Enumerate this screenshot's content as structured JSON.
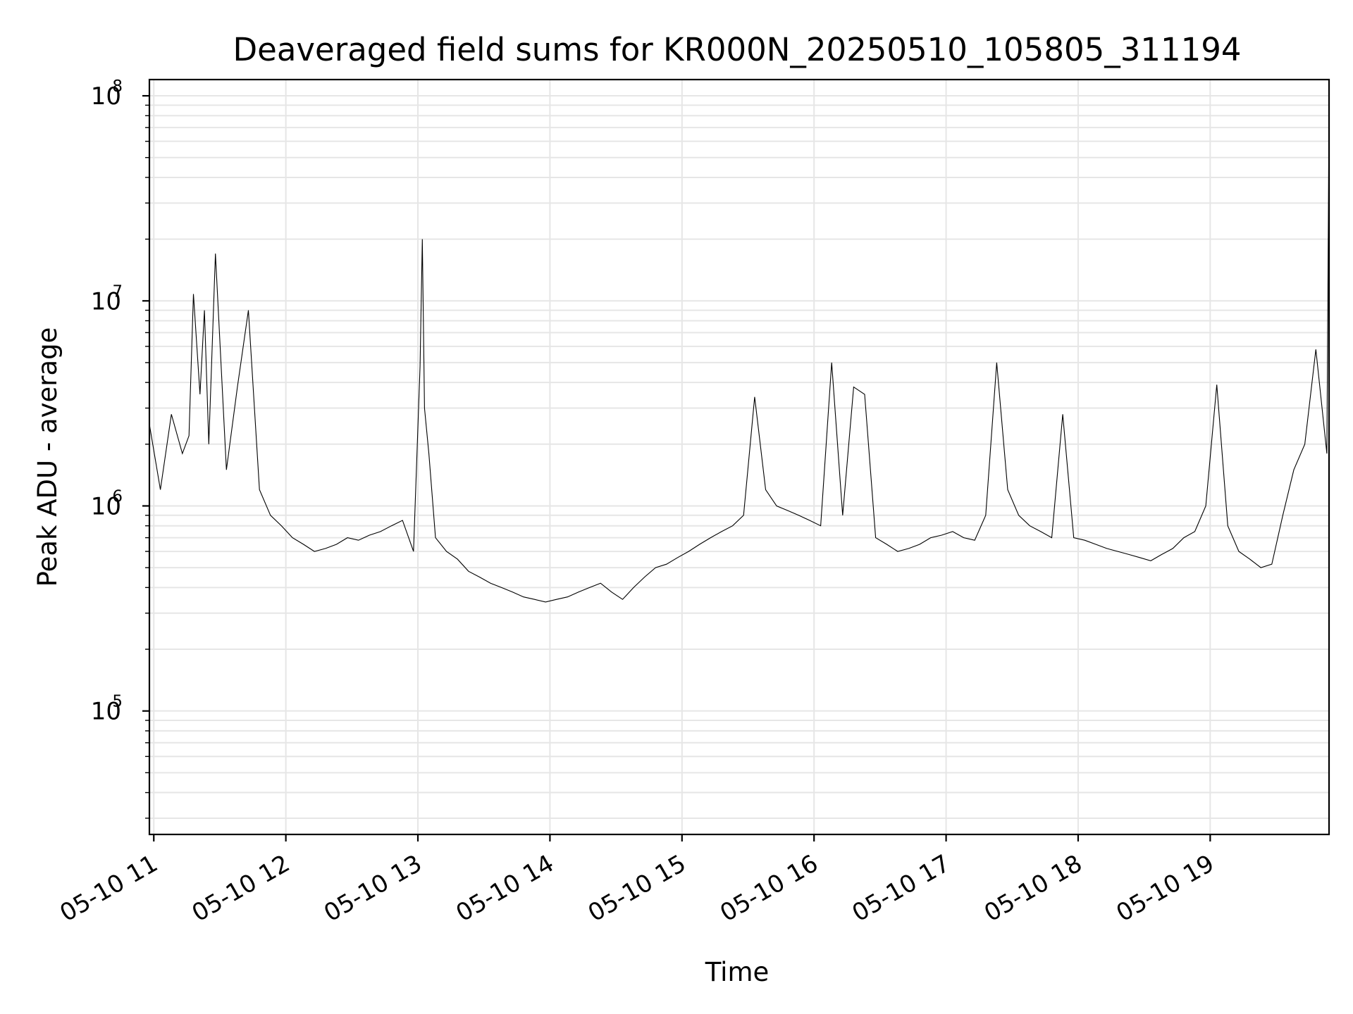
{
  "chart_data": {
    "type": "line",
    "title": "Deaveraged field sums for KR000N_20250510_105805_311194",
    "xlabel": "Time",
    "ylabel": "Peak ADU - average",
    "yscale": "log",
    "ylim": [
      25000,
      120000000
    ],
    "xlim": [
      "2025-05-10 10:58",
      "2025-05-10 19:54"
    ],
    "grid": true,
    "x_ticks": [
      {
        "value": "2025-05-10 11:00",
        "label": "05-10 11"
      },
      {
        "value": "2025-05-10 12:00",
        "label": "05-10 12"
      },
      {
        "value": "2025-05-10 13:00",
        "label": "05-10 13"
      },
      {
        "value": "2025-05-10 14:00",
        "label": "05-10 14"
      },
      {
        "value": "2025-05-10 15:00",
        "label": "05-10 15"
      },
      {
        "value": "2025-05-10 16:00",
        "label": "05-10 16"
      },
      {
        "value": "2025-05-10 17:00",
        "label": "05-10 17"
      },
      {
        "value": "2025-05-10 18:00",
        "label": "05-10 18"
      },
      {
        "value": "2025-05-10 19:00",
        "label": "05-10 19"
      }
    ],
    "y_ticks": [
      {
        "value": 100000,
        "base": "10",
        "exp": "5"
      },
      {
        "value": 1000000,
        "base": "10",
        "exp": "6"
      },
      {
        "value": 10000000,
        "base": "10",
        "exp": "7"
      },
      {
        "value": 100000000,
        "base": "10",
        "exp": "8"
      }
    ],
    "series": [
      {
        "color": "#000000",
        "x": [
          "10:58",
          "11:03",
          "11:08",
          "11:13",
          "11:16",
          "11:18",
          "11:21",
          "11:23",
          "11:25",
          "11:28",
          "11:33",
          "11:38",
          "11:43",
          "11:48",
          "11:53",
          "11:58",
          "12:03",
          "12:08",
          "12:13",
          "12:18",
          "12:23",
          "12:28",
          "12:33",
          "12:38",
          "12:43",
          "12:48",
          "12:53",
          "12:58",
          "13:01",
          "13:02",
          "13:03",
          "13:05",
          "13:08",
          "13:13",
          "13:18",
          "13:23",
          "13:28",
          "13:33",
          "13:38",
          "13:43",
          "13:48",
          "13:53",
          "13:58",
          "14:03",
          "14:08",
          "14:13",
          "14:18",
          "14:23",
          "14:28",
          "14:33",
          "14:38",
          "14:43",
          "14:48",
          "14:53",
          "14:58",
          "15:03",
          "15:08",
          "15:13",
          "15:18",
          "15:23",
          "15:28",
          "15:33",
          "15:38",
          "15:43",
          "15:48",
          "15:53",
          "15:58",
          "16:03",
          "16:08",
          "16:13",
          "16:18",
          "16:23",
          "16:28",
          "16:33",
          "16:38",
          "16:43",
          "16:48",
          "16:53",
          "16:58",
          "17:03",
          "17:08",
          "17:13",
          "17:18",
          "17:23",
          "17:28",
          "17:33",
          "17:38",
          "17:43",
          "17:48",
          "17:53",
          "17:58",
          "18:03",
          "18:08",
          "18:13",
          "18:18",
          "18:23",
          "18:28",
          "18:33",
          "18:38",
          "18:43",
          "18:48",
          "18:53",
          "18:58",
          "19:03",
          "19:08",
          "19:13",
          "19:18",
          "19:23",
          "19:28",
          "19:33",
          "19:38",
          "19:43",
          "19:48",
          "19:53",
          "19:54"
        ],
        "y": [
          2500000,
          1200000,
          2800000,
          1800000,
          2200000,
          10800000,
          3500000,
          9000000,
          2000000,
          17000000,
          1500000,
          3800000,
          9000000,
          1200000,
          900000,
          800000,
          700000,
          650000,
          600000,
          620000,
          650000,
          700000,
          680000,
          720000,
          750000,
          800000,
          850000,
          600000,
          4800000,
          20000000,
          3000000,
          1800000,
          700000,
          600000,
          550000,
          480000,
          450000,
          420000,
          400000,
          380000,
          360000,
          350000,
          340000,
          350000,
          360000,
          380000,
          400000,
          420000,
          380000,
          350000,
          400000,
          450000,
          500000,
          520000,
          560000,
          600000,
          650000,
          700000,
          750000,
          800000,
          900000,
          3400000,
          1200000,
          1000000,
          950000,
          900000,
          850000,
          800000,
          5000000,
          900000,
          3800000,
          3500000,
          700000,
          650000,
          600000,
          620000,
          650000,
          700000,
          720000,
          750000,
          700000,
          680000,
          900000,
          5000000,
          1200000,
          900000,
          800000,
          750000,
          700000,
          2800000,
          700000,
          680000,
          650000,
          620000,
          600000,
          580000,
          560000,
          540000,
          580000,
          620000,
          700000,
          750000,
          1000000,
          3900000,
          800000,
          600000,
          550000,
          500000,
          520000,
          900000,
          1500000,
          2000000,
          5800000,
          1800000,
          80000000
        ]
      }
    ]
  }
}
